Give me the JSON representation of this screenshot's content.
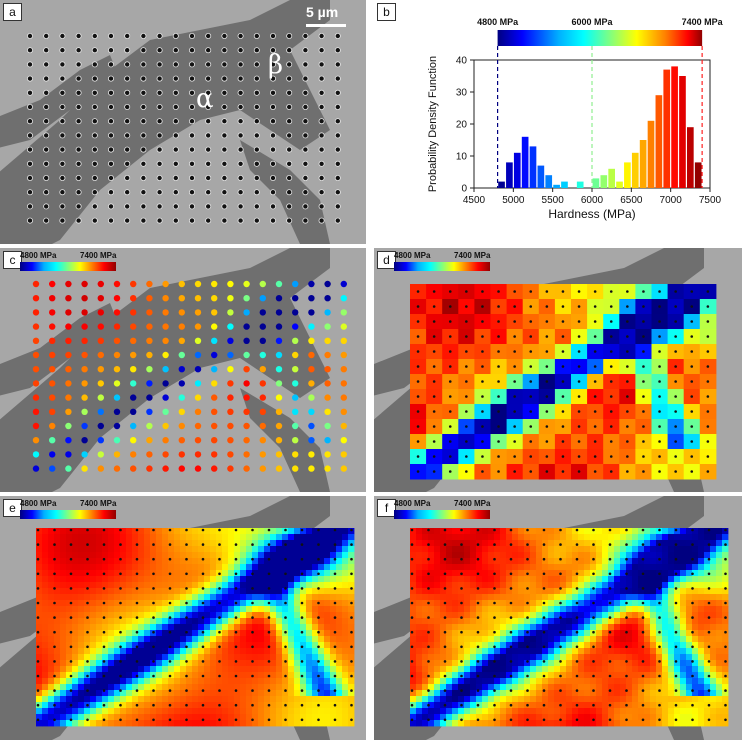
{
  "panels": {
    "a": {
      "label": "a",
      "scale_bar": "5 µm",
      "phase_alpha": "α",
      "phase_beta": "β"
    },
    "b": {
      "label": "b"
    },
    "c": {
      "label": "c",
      "cb_min": "4800 MPa",
      "cb_max": "7400 MPa"
    },
    "d": {
      "label": "d",
      "cb_min": "4800 MPa",
      "cb_max": "7400 MPa"
    },
    "e": {
      "label": "e",
      "cb_min": "4800 MPa",
      "cb_max": "7400 MPa"
    },
    "f": {
      "label": "f",
      "cb_min": "4800 MPa",
      "cb_max": "7400 MPa"
    }
  },
  "chart_data": {
    "type": "bar",
    "title": "",
    "xlabel": "Hardness (MPa)",
    "ylabel": "Probability Density Function",
    "xlim": [
      4500,
      7500
    ],
    "ylim": [
      0,
      40
    ],
    "x_ticks": [
      "4500",
      "5000",
      "5500",
      "6000",
      "6500",
      "7000",
      "7500"
    ],
    "y_ticks": [
      "0",
      "10",
      "20",
      "30",
      "40"
    ],
    "bin_width": 100,
    "bin_centers": [
      4850,
      4950,
      5050,
      5150,
      5250,
      5350,
      5450,
      5550,
      5650,
      5850,
      6050,
      6150,
      6250,
      6350,
      6450,
      6550,
      6650,
      6750,
      6850,
      6950,
      7050,
      7150,
      7250,
      7350
    ],
    "values": [
      2,
      8,
      11,
      16,
      13,
      7,
      4,
      1,
      2,
      2,
      3,
      4,
      6,
      2,
      8,
      11,
      15,
      21,
      29,
      37,
      38,
      35,
      19,
      8
    ],
    "colorbar": {
      "min": 4800,
      "mid": 6000,
      "max": 7400,
      "min_label": "4800 MPa",
      "mid_label": "6000 MPa",
      "max_label": "7400 MPa"
    },
    "reference_lines": [
      4800,
      6000,
      7400
    ]
  }
}
